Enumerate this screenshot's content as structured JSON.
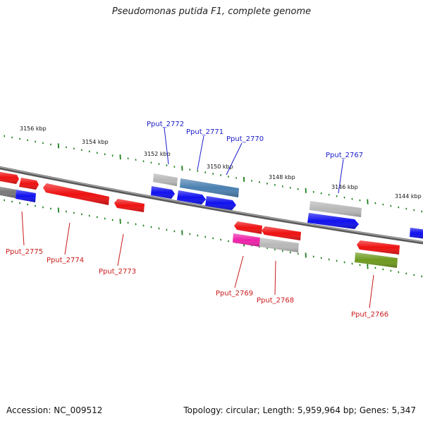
{
  "title": "Pseudomonas putida F1, complete genome",
  "footer": {
    "accession": "Accession: NC_009512",
    "topology": "Topology: circular; Length: 5,959,964 bp; Genes: 5,347"
  },
  "colors": {
    "backbone": "#7a7a7a",
    "tick": "#1a7f1a",
    "label_blue": "#1a1acc",
    "label_red": "#cc1a1a",
    "red": "#ee1111",
    "blue": "#1010ee",
    "gray": "#b8b8b8",
    "darkgray": "#7a7a7a",
    "steelblue": "#4a7fb0",
    "magenta": "#ee22aa",
    "olive": "#6e9a1e"
  },
  "ticks": [
    {
      "label": "3156 kbp"
    },
    {
      "label": "3154 kbp"
    },
    {
      "label": "3152 kbp"
    },
    {
      "label": "3150 kbp"
    },
    {
      "label": "3148 kbp"
    },
    {
      "label": "3146 kbp"
    },
    {
      "label": "3144 kbp"
    }
  ],
  "genes_labeled_top": [
    {
      "label": "Pput_2772"
    },
    {
      "label": "Pput_2771"
    },
    {
      "label": "Pput_2770"
    },
    {
      "label": "Pput_2767"
    }
  ],
  "genes_labeled_bottom": [
    {
      "label": "Pput_2775"
    },
    {
      "label": "Pput_2774"
    },
    {
      "label": "Pput_2773"
    },
    {
      "label": "Pput_2769"
    },
    {
      "label": "Pput_2768"
    },
    {
      "label": "Pput_2766"
    }
  ]
}
